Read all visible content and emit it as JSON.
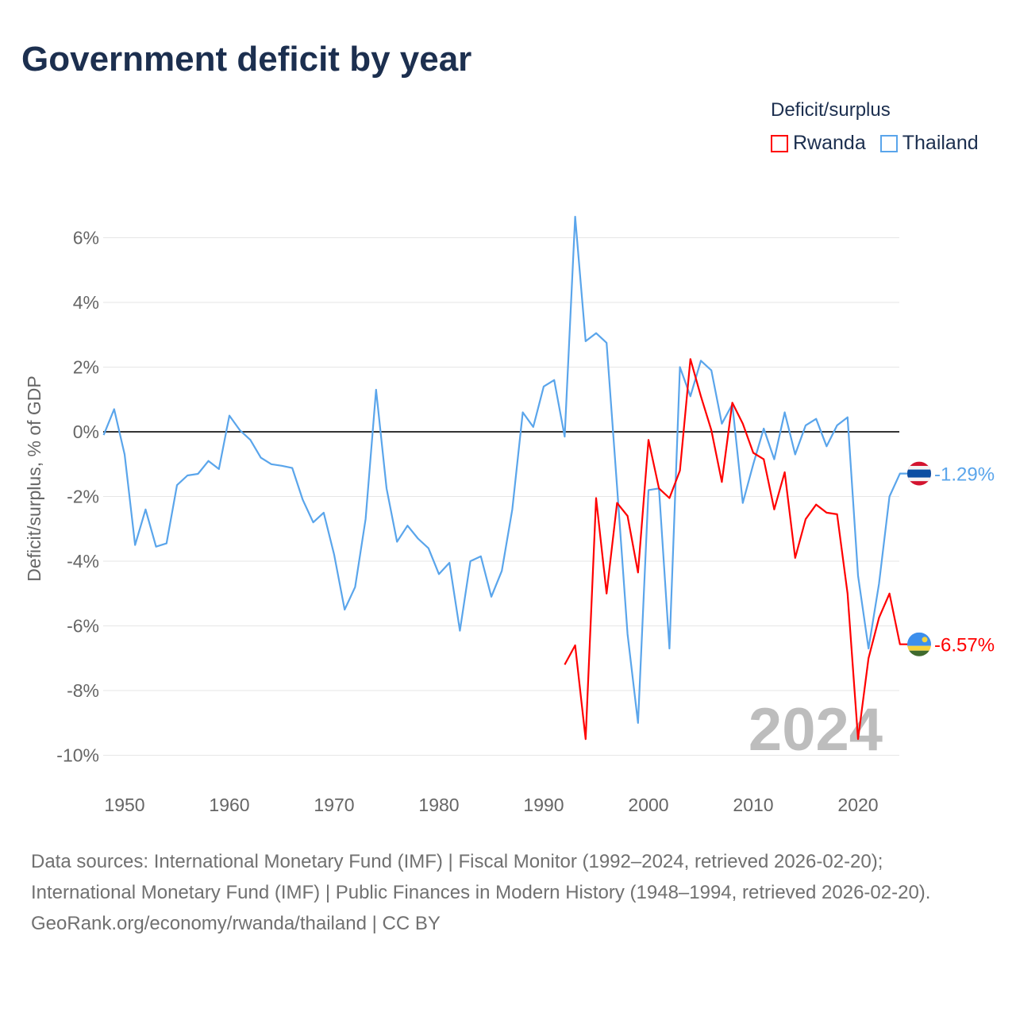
{
  "title": "Government deficit by year",
  "legend": {
    "title": "Deficit/surplus",
    "items": [
      {
        "name": "Rwanda",
        "color": "#ff0000"
      },
      {
        "name": "Thailand",
        "color": "#5aa5eb"
      }
    ]
  },
  "chart_data": {
    "type": "line",
    "title": "Government deficit by year",
    "xlabel": "",
    "ylabel": "Deficit/surplus, % of GDP",
    "xlim": [
      1948,
      2024
    ],
    "ylim": [
      -11,
      7
    ],
    "x_ticks": [
      1950,
      1960,
      1970,
      1980,
      1990,
      2000,
      2010,
      2020
    ],
    "x_tick_labels": [
      "1950",
      "1960",
      "1970",
      "1980",
      "1990",
      "2000",
      "2010",
      "2020"
    ],
    "y_ticks": [
      6,
      4,
      2,
      0,
      -2,
      -4,
      -6,
      -8,
      -10
    ],
    "y_tick_labels": [
      "6%",
      "4%",
      "2%",
      "0%",
      "-2%",
      "-4%",
      "-6%",
      "-8%",
      "-10%"
    ],
    "grid": true,
    "watermark": "2024",
    "legend_position": "top-right",
    "series": [
      {
        "name": "Thailand",
        "color": "#5aa5eb",
        "start_year": 1948,
        "end_label": "-1.29%",
        "values": [
          -0.1,
          0.7,
          -0.7,
          -3.5,
          -2.4,
          -3.55,
          -3.45,
          -1.65,
          -1.35,
          -1.3,
          -0.9,
          -1.15,
          0.5,
          0.05,
          -0.25,
          -0.8,
          -1.0,
          -1.05,
          -1.12,
          -2.1,
          -2.8,
          -2.5,
          -3.8,
          -5.5,
          -4.8,
          -2.7,
          1.3,
          -1.75,
          -3.4,
          -2.9,
          -3.3,
          -3.6,
          -4.4,
          -4.05,
          -6.15,
          -4.0,
          -3.85,
          -5.1,
          -4.3,
          -2.4,
          0.6,
          0.15,
          1.4,
          1.6,
          -0.15,
          6.65,
          2.8,
          3.05,
          2.75,
          -1.7,
          -6.25,
          -9.0,
          -1.8,
          -1.75,
          -6.7,
          2.0,
          1.1,
          2.2,
          1.9,
          0.25,
          0.85,
          -2.2,
          -1.0,
          0.1,
          -0.85,
          0.6,
          -0.7,
          0.2,
          0.4,
          -0.45,
          0.2,
          0.45,
          -4.45,
          -6.7,
          -4.7,
          -2.0,
          -1.29
        ]
      },
      {
        "name": "Rwanda",
        "color": "#ff0000",
        "start_year": 1992,
        "end_label": "-6.57%",
        "values": [
          -7.2,
          -6.6,
          -9.5,
          -2.05,
          -5.0,
          -2.2,
          -2.6,
          -4.35,
          -0.25,
          -1.75,
          -2.05,
          -1.2,
          2.25,
          1.1,
          0.05,
          -1.55,
          0.9,
          0.25,
          -0.65,
          -0.85,
          -2.4,
          -1.25,
          -3.9,
          -2.7,
          -2.25,
          -2.5,
          -2.55,
          -5.0,
          -9.5,
          -7.0,
          -5.75,
          -5.0,
          -6.57
        ]
      }
    ]
  },
  "footer": {
    "sources": "Data sources: International Monetary Fund (IMF) | Fiscal Monitor (1992–2024, retrieved 2026-02-20); International Monetary Fund (IMF) | Public Finances in Modern History (1948–1994, retrieved 2026-02-20).",
    "credit": "GeoRank.org/economy/rwanda/thailand | CC BY"
  }
}
